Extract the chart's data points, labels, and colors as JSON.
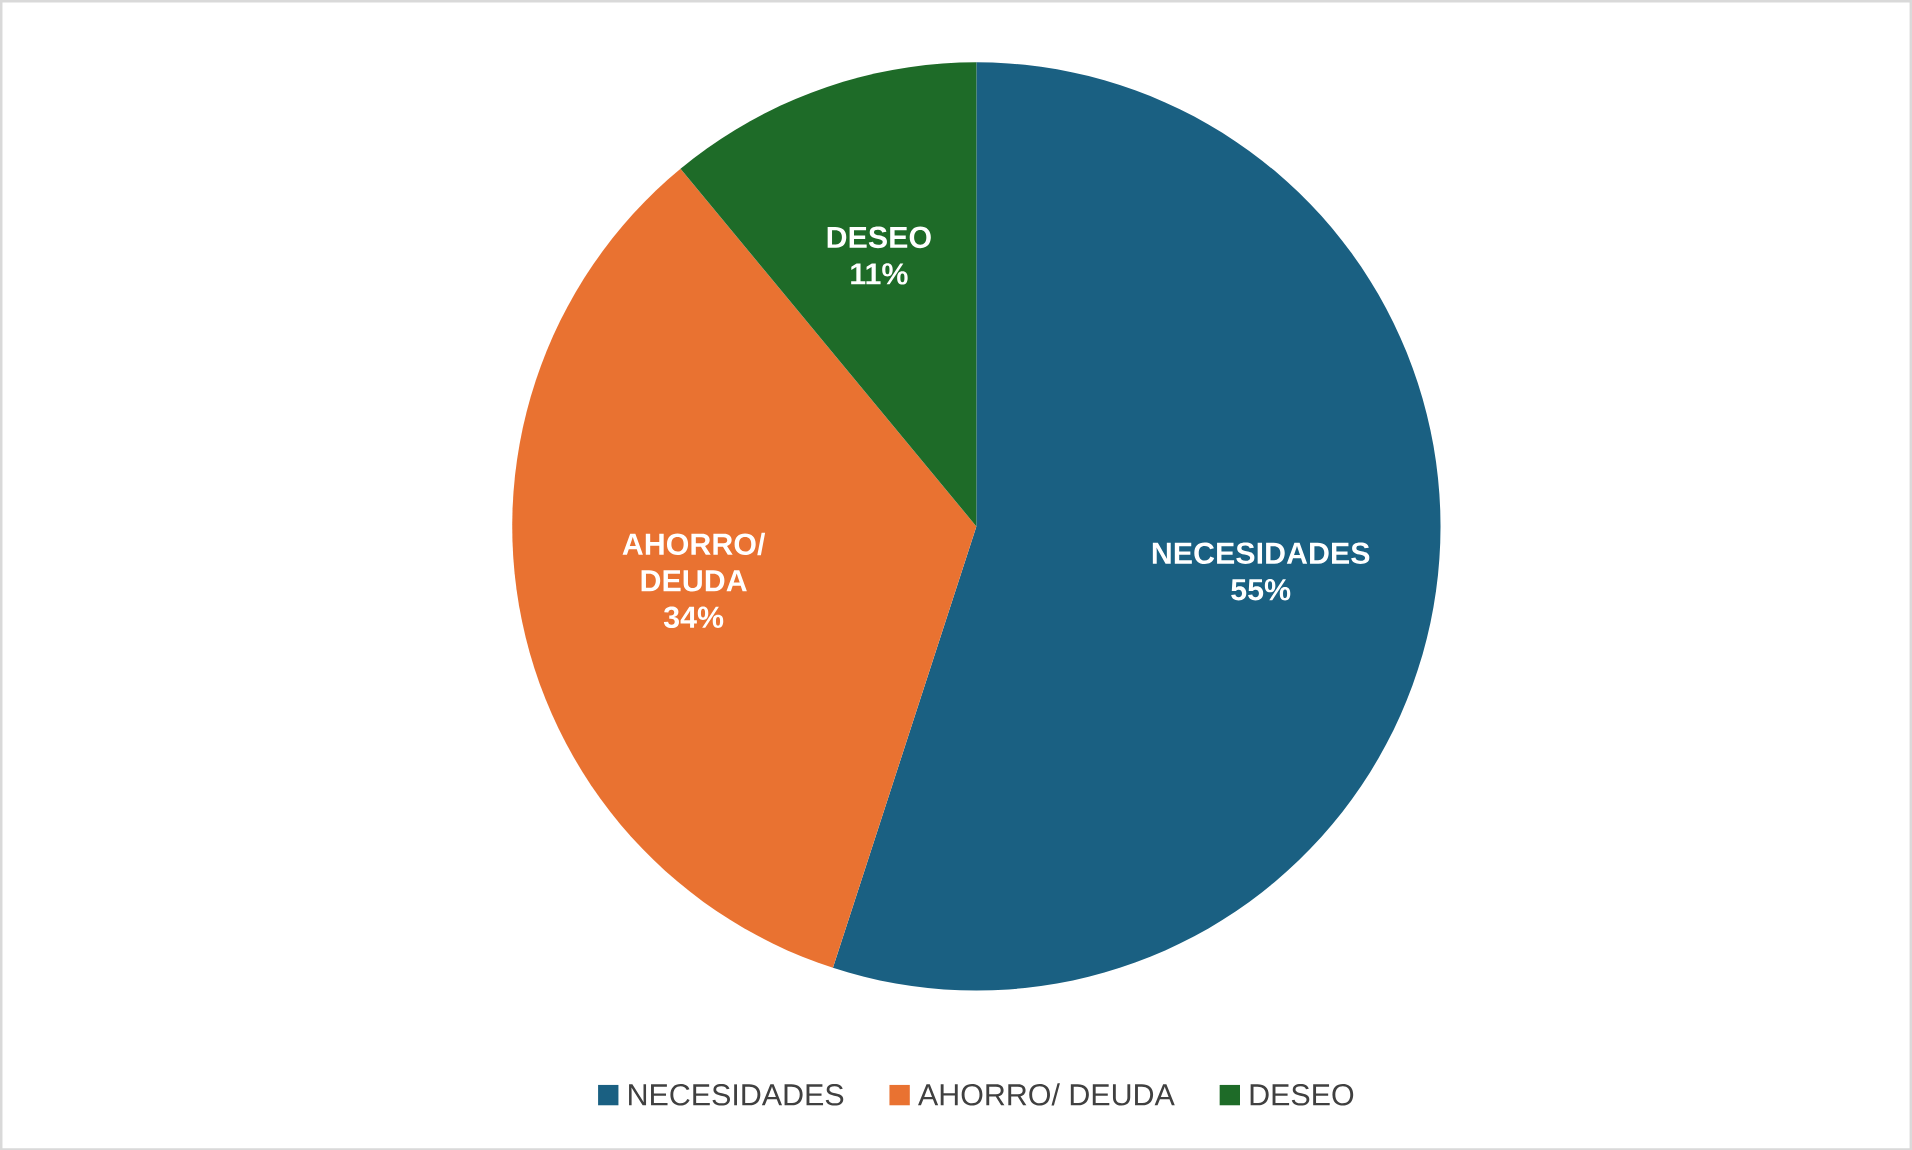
{
  "chart_data": {
    "type": "pie",
    "categories": [
      "NECESIDADES",
      "AHORRO/ DEUDA",
      "DESEO"
    ],
    "values": [
      55,
      34,
      11
    ],
    "colors": [
      "#1a6082",
      "#e97231",
      "#1e6b28"
    ],
    "value_labels": [
      "55%",
      "34%",
      "11%"
    ],
    "legend": "bottom"
  }
}
